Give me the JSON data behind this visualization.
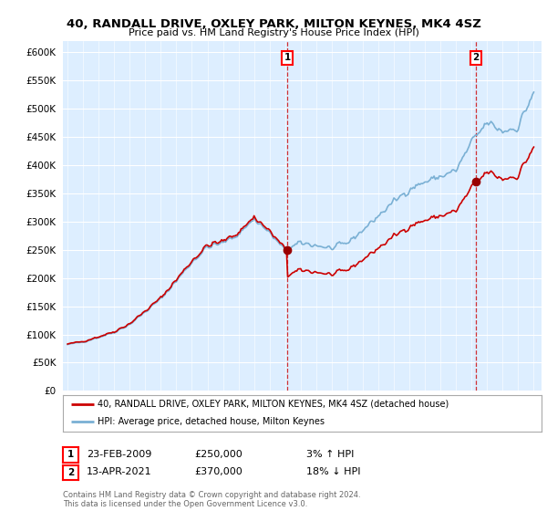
{
  "title": "40, RANDALL DRIVE, OXLEY PARK, MILTON KEYNES, MK4 4SZ",
  "subtitle": "Price paid vs. HM Land Registry's House Price Index (HPI)",
  "ylim": [
    0,
    620000
  ],
  "yticks": [
    0,
    50000,
    100000,
    150000,
    200000,
    250000,
    300000,
    350000,
    400000,
    450000,
    500000,
    550000,
    600000
  ],
  "background_color": "#ffffff",
  "plot_bg_color": "#ddeeff",
  "grid_color": "#ffffff",
  "legend_entry1": "40, RANDALL DRIVE, OXLEY PARK, MILTON KEYNES, MK4 4SZ (detached house)",
  "legend_entry2": "HPI: Average price, detached house, Milton Keynes",
  "annotation1_date": "23-FEB-2009",
  "annotation1_price": "£250,000",
  "annotation1_hpi": "3% ↑ HPI",
  "annotation2_date": "13-APR-2021",
  "annotation2_price": "£370,000",
  "annotation2_hpi": "18% ↓ HPI",
  "copyright_text": "Contains HM Land Registry data © Crown copyright and database right 2024.\nThis data is licensed under the Open Government Licence v3.0.",
  "sale1_year": 2009.14,
  "sale1_price": 250000,
  "sale2_year": 2021.28,
  "sale2_price": 370000,
  "hpi_color": "#7ab0d4",
  "price_color": "#cc0000",
  "vline_color": "#cc0000"
}
